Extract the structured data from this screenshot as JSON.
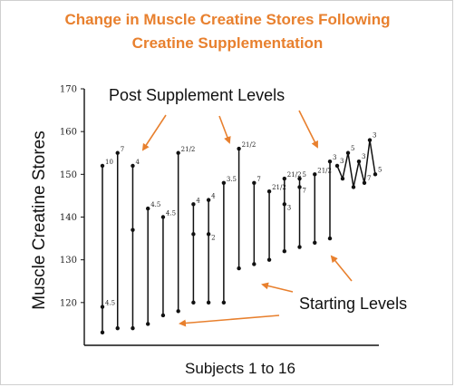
{
  "title_line1": "Change in Muscle Creatine Stores Following",
  "title_line2": "Creatine Supplementation",
  "colors": {
    "title": "#e8802e",
    "arrow": "#e8802e",
    "ink": "#111111"
  },
  "chart_data": {
    "type": "line",
    "ylabel": "Muscle Creatine Stores",
    "xlabel": "Subjects 1 to 16",
    "ylim": [
      110,
      170
    ],
    "yticks": [
      120,
      130,
      140,
      150,
      160,
      170
    ],
    "annotations": {
      "post": "Post Supplement Levels",
      "start": "Starting Levels"
    },
    "subjects": [
      {
        "start": 113,
        "end": 152,
        "label_top": "10",
        "label_start": "4.5",
        "mid": [
          119
        ]
      },
      {
        "start": 114,
        "end": 155,
        "label_top": "7"
      },
      {
        "start": 114,
        "end": 152,
        "label_top": "4",
        "mid": [
          137
        ]
      },
      {
        "start": 115,
        "end": 142,
        "label_top": "4.5"
      },
      {
        "start": 117,
        "end": 140,
        "label_top": "4.5"
      },
      {
        "start": 118,
        "end": 155,
        "label_top": "21/2"
      },
      {
        "start": 120,
        "end": 143,
        "label_top": "4",
        "mid": [
          136
        ]
      },
      {
        "start": 120,
        "end": 144,
        "label_top": "4",
        "mid": [
          136
        ],
        "label_mid": "2"
      },
      {
        "start": 120,
        "end": 148,
        "label_top": "3.5"
      },
      {
        "start": 128,
        "end": 156,
        "label_top": "21/2"
      },
      {
        "start": 129,
        "end": 148,
        "label_top": "7"
      },
      {
        "start": 130,
        "end": 146,
        "label_top": "21/2"
      },
      {
        "start": 132,
        "end": 149,
        "label_top": "21/2",
        "mid": [
          143
        ],
        "label_mid": "3"
      },
      {
        "start": 133,
        "end": 149,
        "label_top": "5",
        "mid": [
          147
        ],
        "label_mid": "7"
      },
      {
        "start": 134,
        "end": 150,
        "label_top": "21/2"
      },
      {
        "start": 135,
        "end": 153,
        "label_top": "3"
      }
    ],
    "cluster": [
      {
        "x": 1,
        "y": 152,
        "label": "3"
      },
      {
        "x": 2,
        "y": 149,
        "label": ""
      },
      {
        "x": 3,
        "y": 155,
        "label": "5"
      },
      {
        "x": 4,
        "y": 147,
        "label": ""
      },
      {
        "x": 5,
        "y": 153,
        "label": "3"
      },
      {
        "x": 6,
        "y": 148,
        "label": "7"
      },
      {
        "x": 7,
        "y": 158,
        "label": "3"
      },
      {
        "x": 8,
        "y": 150,
        "label": "5"
      }
    ]
  }
}
